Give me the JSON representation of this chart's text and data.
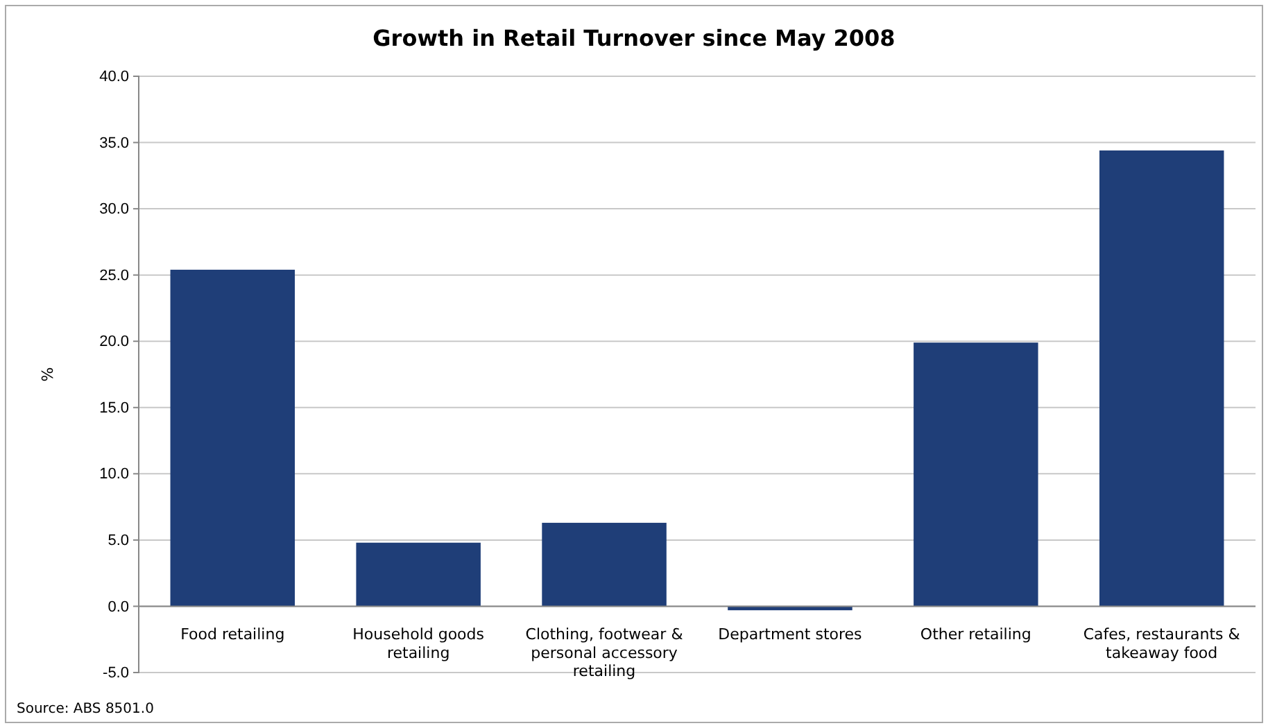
{
  "chart_data": {
    "type": "bar",
    "title": "Growth in Retail Turnover since May 2008",
    "ylabel": "%",
    "categories": [
      "Food retailing",
      "Household goods retailing",
      "Clothing, footwear & personal accessory retailing",
      "Department stores",
      "Other retailing",
      "Cafes, restaurants & takeaway food"
    ],
    "series": [
      {
        "color": "#1f3e78",
        "values": [
          25.4,
          4.8,
          6.3,
          -0.3,
          19.9,
          34.4
        ]
      }
    ],
    "ylim": [
      -5,
      40
    ],
    "yticks": [
      {
        "value": -5,
        "label": "-5.0"
      },
      {
        "value": 0,
        "label": "0.0"
      },
      {
        "value": 5,
        "label": "5.0"
      },
      {
        "value": 10,
        "label": "10.0"
      },
      {
        "value": 15,
        "label": "15.0"
      },
      {
        "value": 20,
        "label": "20.0"
      },
      {
        "value": 25,
        "label": "25.0"
      },
      {
        "value": 30,
        "label": "30.0"
      },
      {
        "value": 35,
        "label": "35.0"
      },
      {
        "value": 40,
        "label": "40.0"
      }
    ],
    "grid": "y",
    "annotations": [
      "Source: ABS 8501.0"
    ]
  }
}
